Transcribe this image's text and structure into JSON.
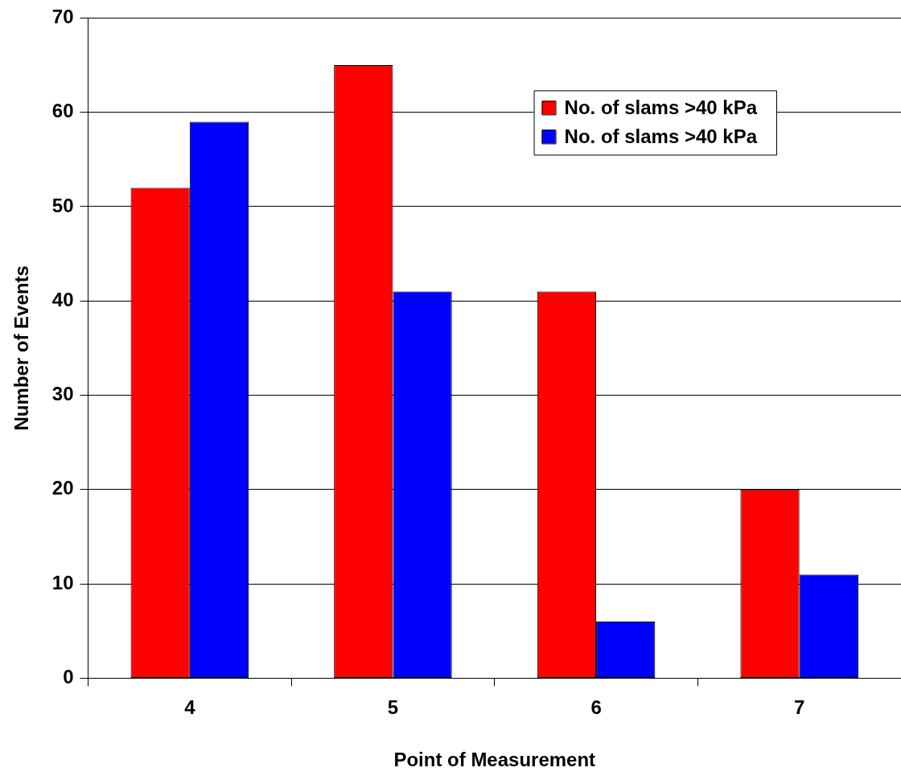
{
  "chart_data": {
    "type": "bar",
    "xlabel": "Point of Measurement",
    "ylabel": "Number of Events",
    "categories": [
      "4",
      "5",
      "6",
      "7"
    ],
    "series": [
      {
        "name": "No. of slams >40 kPa",
        "color": "#ff0000",
        "values": [
          52,
          65,
          41,
          20
        ]
      },
      {
        "name": "No. of slams >40 kPa",
        "color": "#0000ff",
        "values": [
          59,
          41,
          6,
          11
        ]
      }
    ],
    "ylim": [
      0,
      70
    ],
    "yticks": [
      0,
      10,
      20,
      30,
      40,
      50,
      60,
      70
    ],
    "grid": "y",
    "legend": "top right"
  }
}
